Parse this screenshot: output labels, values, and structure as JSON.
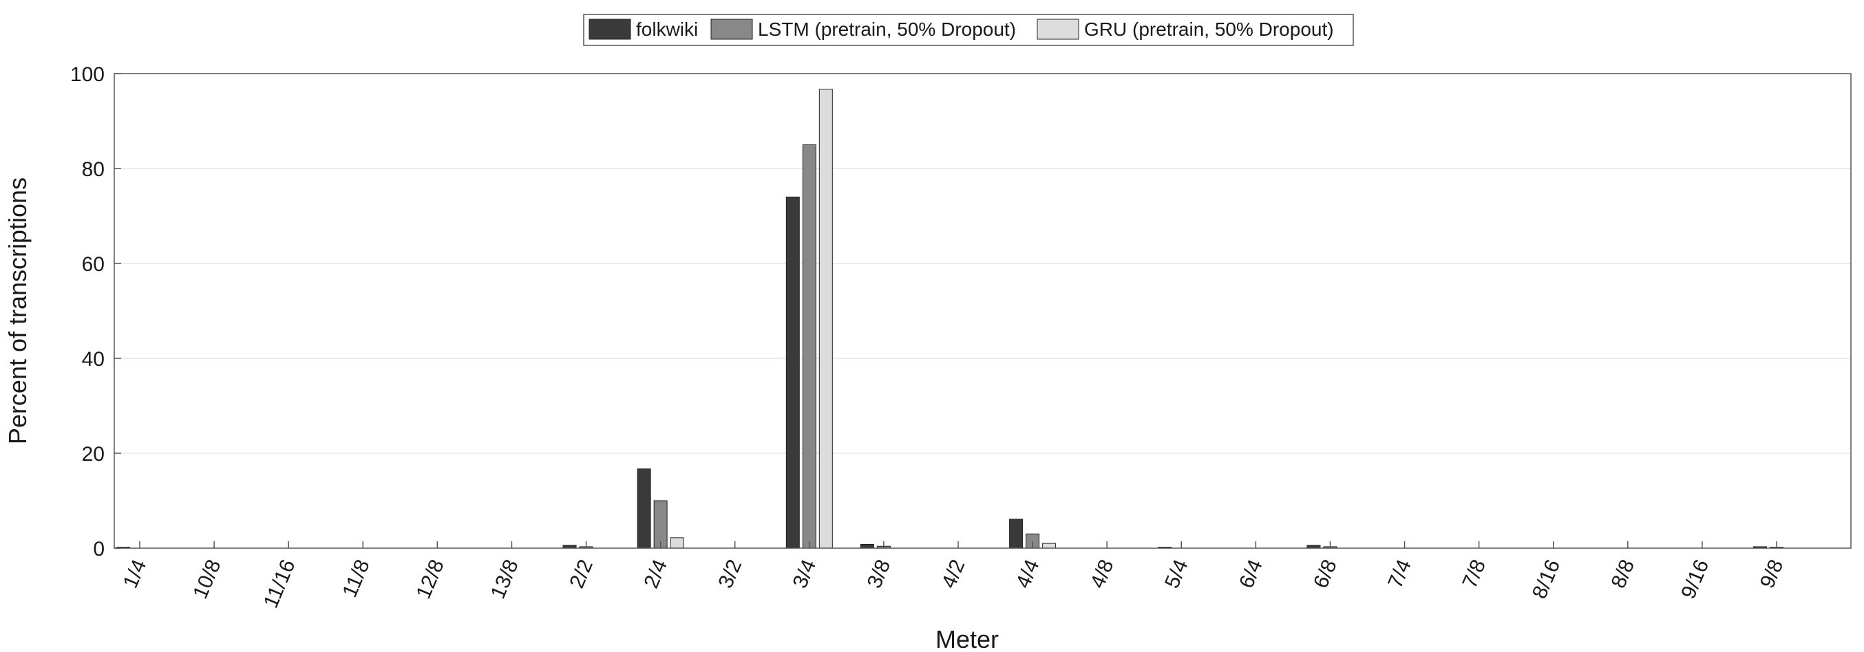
{
  "chart_data": {
    "type": "bar",
    "xlabel": "Meter",
    "ylabel": "Percent of transcriptions",
    "ylim": [
      0,
      100
    ],
    "yticks": [
      0,
      20,
      40,
      60,
      80,
      100
    ],
    "grid": "horizontal",
    "legend_position": "top-center",
    "categories": [
      "1/4",
      "10/8",
      "11/16",
      "11/8",
      "12/8",
      "13/8",
      "2/2",
      "2/4",
      "3/2",
      "3/4",
      "3/8",
      "4/2",
      "4/4",
      "4/8",
      "5/4",
      "6/4",
      "6/8",
      "7/4",
      "7/8",
      "8/16",
      "8/8",
      "9/16",
      "9/8"
    ],
    "series": [
      {
        "name": "folkwiki",
        "color": "#3a3a3a",
        "values": [
          0.2,
          0,
          0,
          0,
          0,
          0,
          0.6,
          16.7,
          0,
          74,
          0.8,
          0,
          6.1,
          0,
          0.2,
          0,
          0.6,
          0,
          0,
          0,
          0,
          0,
          0.3
        ]
      },
      {
        "name": "LSTM (pretrain, 50% Dropout)",
        "color": "#888888",
        "values": [
          0,
          0,
          0,
          0,
          0,
          0,
          0.3,
          10,
          0,
          85,
          0.4,
          0,
          3,
          0,
          0,
          0,
          0.3,
          0,
          0,
          0,
          0,
          0,
          0.2
        ]
      },
      {
        "name": "GRU (pretrain, 50% Dropout)",
        "color": "#dcdcdc",
        "values": [
          0,
          0,
          0,
          0,
          0,
          0,
          0,
          2.2,
          0,
          96.7,
          0,
          0,
          1,
          0,
          0,
          0,
          0,
          0,
          0,
          0,
          0,
          0,
          0
        ]
      }
    ]
  }
}
